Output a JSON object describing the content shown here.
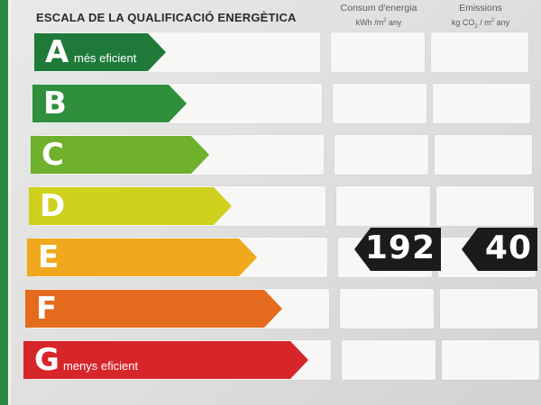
{
  "title": "ESCALA DE LA QUALIFICACIÓ ENERGÈTICA",
  "columns": {
    "energy": {
      "label": "Consum d'energia",
      "unit_main": "kWh /m",
      "unit_sup": "2",
      "unit_tail": "any"
    },
    "emissions": {
      "label": "Emissions",
      "unit_main": "kg CO",
      "unit_sub": "2",
      "unit_mid": "/ m",
      "unit_sup": "2",
      "unit_tail": "any"
    }
  },
  "classes": [
    {
      "letter": "A",
      "desc": "més eficient",
      "color": "#1f7a3a"
    },
    {
      "letter": "B",
      "desc": "",
      "color": "#2f8f3c"
    },
    {
      "letter": "C",
      "desc": "",
      "color": "#6fb02c"
    },
    {
      "letter": "D",
      "desc": "",
      "color": "#cfd11e"
    },
    {
      "letter": "E",
      "desc": "",
      "color": "#f0a81c"
    },
    {
      "letter": "F",
      "desc": "",
      "color": "#e46a1e"
    },
    {
      "letter": "G",
      "desc": "menys eficient",
      "color": "#d6262a"
    }
  ],
  "rating": {
    "class": "E",
    "energy_value": "192",
    "emissions_value": "40",
    "indicator_color": "#1b1b1b"
  }
}
